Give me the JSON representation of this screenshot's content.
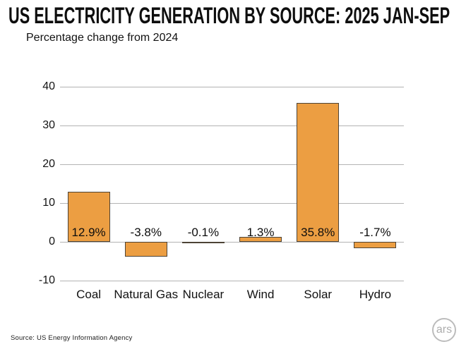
{
  "header": {
    "title": "US ELECTRICITY GENERATION BY SOURCE: 2025 JAN-SEP",
    "subtitle": "Percentage change from 2024"
  },
  "chart_data": {
    "type": "bar",
    "title": "US ELECTRICITY GENERATION BY SOURCE: 2025 JAN-SEP",
    "subtitle": "Percentage change from 2024",
    "categories": [
      "Coal",
      "Natural Gas",
      "Nuclear",
      "Wind",
      "Solar",
      "Hydro"
    ],
    "values": [
      12.9,
      -3.8,
      -0.1,
      1.3,
      35.8,
      -1.7
    ],
    "value_labels": [
      "12.9%",
      "-3.8%",
      "-0.1%",
      "1.3%",
      "35.8%",
      "-1.7%"
    ],
    "xlabel": "",
    "ylabel": "",
    "ylim": [
      -10,
      40
    ],
    "yticks": [
      40,
      30,
      20,
      10,
      0,
      -10
    ],
    "grid": "horizontal",
    "legend": "none",
    "bar_color": "#ec9e42",
    "bar_border_color": "#4d4336",
    "gridline_color": "#b3b3b3",
    "label_color": "#0d0d0d"
  },
  "footer": {
    "source": "Source:  US Energy Information Agency",
    "logo_text": "ars"
  }
}
